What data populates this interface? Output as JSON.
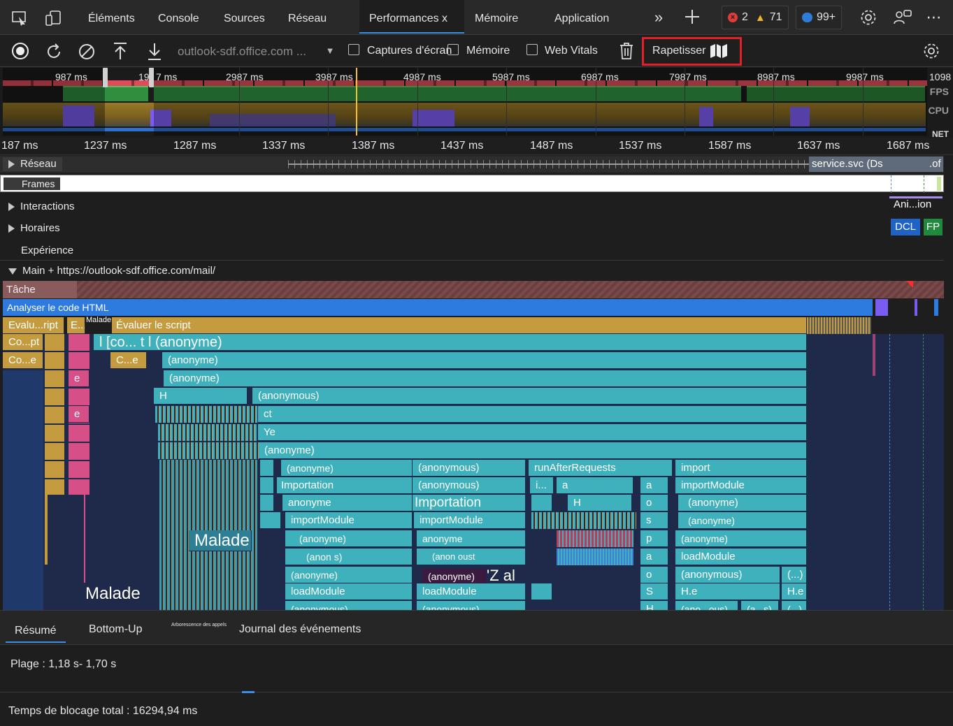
{
  "tabs": {
    "elements": "Éléments",
    "console": "Console",
    "sources": "Sources",
    "network": "Réseau",
    "performance": "Performances x",
    "memory": "Mémoire",
    "application": "Application"
  },
  "status": {
    "errors": "2",
    "warnings": "71",
    "messages": "99+"
  },
  "toolbar": {
    "profile_select": "outlook-sdf.office.com ...",
    "screenshots_label": "Captures d'écran",
    "memory_label": "Mémoire",
    "webvitals_label": "Web Vitals",
    "minimize_label": "Rapetisser"
  },
  "overview": {
    "ticks": [
      "987 ms",
      "19",
      "7 ms",
      "2987 ms",
      "3987 ms",
      "4987 ms",
      "5987 ms",
      "6987 ms",
      "7987 ms",
      "8987 ms",
      "9987 ms",
      "1098"
    ],
    "fps_label": "FPS",
    "cpu_label": "CPU",
    "net_label": "NET"
  },
  "ruler": [
    "187 ms",
    "1237 ms",
    "1287 ms",
    "1337 ms",
    "1387 ms",
    "1437 ms",
    "1487 ms",
    "1537 ms",
    "1587 ms",
    "1637 ms",
    "1687 ms"
  ],
  "tracks": {
    "network": "Réseau",
    "network_req": "service.svc (Ds",
    "network_req2": ".of",
    "frames": "Frames",
    "interactions": "Interactions",
    "timings": "Horaires",
    "experience": "Expérience",
    "main": "Main + https://outlook-sdf.office.com/mail/",
    "anim": "Ani...ion",
    "dcl": "DCL",
    "fp": "FP"
  },
  "flame": {
    "task": "Tâche",
    "parse": "Analyser le code HTML",
    "eval1": "Evalu...ript",
    "eval2": "E...",
    "sick": "Malade",
    "eval3": "Évaluer le script",
    "compile1": "Co...pt",
    "compile2": "Co...e",
    "anon_big": "l [co... t l (anonyme)",
    "ce": "C...e",
    "anonyme": "(anonyme)",
    "anonyme_plain": "anonyme",
    "anonymous": "(anonymous)",
    "e": "e",
    "h": "H",
    "ct": "ct",
    "ye": "Ye",
    "run": "runAfterRequests",
    "import": "import",
    "importmodule": "importModule",
    "importation": "Importation",
    "i_dots": "i...",
    "a": "a",
    "o": "o",
    "s": "s",
    "p": "p",
    "S": "S",
    "anon_paren": ")",
    "anon_s": "(anon s)",
    "anon_oust": "(anon oust",
    "zal": "'Z al",
    "loadmodule": "loadModule",
    "he": "H.e",
    "dots": "(...)",
    "anonymous_cut": "(anonymous)",
    "ano_ous": "(ano...ous)",
    "a_s": "(a...s)",
    "malade_big": "Malade",
    "malade_big2": "Malade"
  },
  "bottom": {
    "summary": "Résumé",
    "bottomup": "Bottom-Up",
    "calltree": "Arborescence des appels",
    "eventlog": "Journal des événements",
    "range": "Plage : 1,18 s- 1,70 s",
    "blocking": "Temps de blocage total : 16294,94 ms"
  },
  "colors": {
    "accent": "#3a8ee6",
    "highlight": "#e0202b",
    "flame_teal": "#3fb1bc",
    "flame_gold": "#c49b3e",
    "flame_pink": "#d64f86",
    "parse_blue": "#2e7be0"
  },
  "icons": [
    "inspect-icon",
    "device-icon",
    "more-tabs-icon",
    "add-tab-icon",
    "error-icon",
    "warning-icon",
    "message-icon",
    "settings-icon",
    "feedback-icon",
    "menu-icon",
    "record-icon",
    "reload-icon",
    "clear-icon",
    "upload-icon",
    "download-icon",
    "trash-icon",
    "map-icon",
    "capture-settings-icon"
  ]
}
